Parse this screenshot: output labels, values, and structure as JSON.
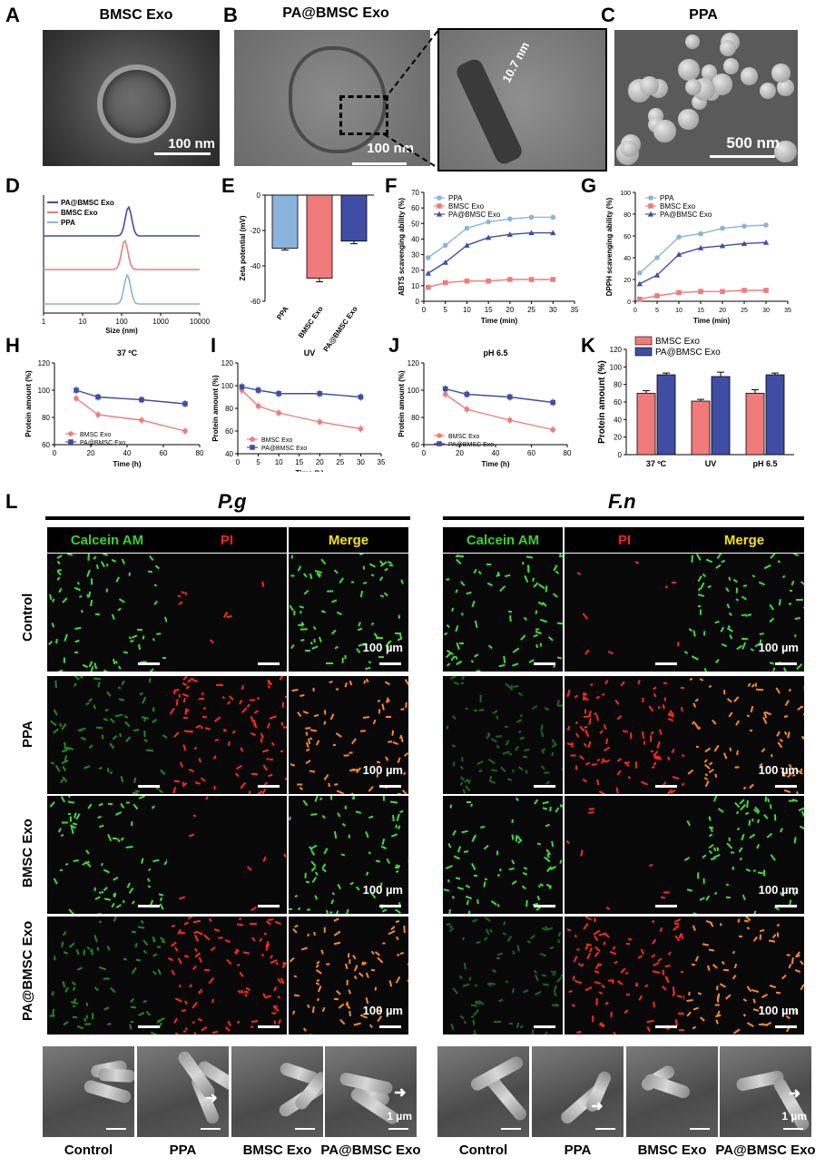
{
  "panels": {
    "A": "A",
    "B": "B",
    "C": "C",
    "D": "D",
    "E": "E",
    "F": "F",
    "G": "G",
    "H": "H",
    "I": "I",
    "J": "J",
    "K": "K",
    "L": "L"
  },
  "tem": {
    "a_title": "BMSC Exo",
    "a_scale": "100 nm",
    "b_title": "PA@BMSC Exo",
    "b_scale": "100 nm",
    "b_zoom_label": "10.7 nm",
    "c_title": "PPA",
    "c_scale": "500 nm"
  },
  "chart_data": [
    {
      "id": "D",
      "type": "line",
      "xlabel": "Size (nm)",
      "x_ticks": [
        "1",
        "10",
        "100",
        "1000",
        "10000"
      ],
      "series": [
        {
          "name": "PA@BMSC Exo",
          "color": "#3f4ea3",
          "peak_nm": 150
        },
        {
          "name": "BMSC Exo",
          "color": "#f07b7b",
          "peak_nm": 120
        },
        {
          "name": "PPA",
          "color": "#8ab4dc",
          "peak_nm": 140
        }
      ]
    },
    {
      "id": "E",
      "type": "bar",
      "ylabel": "Zeta potential (mV)",
      "ylim": [
        -60,
        0
      ],
      "y_ticks": [
        "0",
        "-20",
        "-40",
        "-60"
      ],
      "categories": [
        "PPA",
        "BMSC Exo",
        "PA@BMSC Exo"
      ],
      "values": [
        -30,
        -47,
        -26
      ],
      "errors": [
        1,
        2,
        1.5
      ],
      "colors": [
        "#8ab4dc",
        "#f07b7b",
        "#3f4ea3"
      ]
    },
    {
      "id": "F",
      "type": "line",
      "ylabel": "ABTS scavenging ability (%)",
      "xlabel": "Time (min)",
      "xlim": [
        0,
        35
      ],
      "ylim": [
        0,
        70
      ],
      "x_ticks": [
        "0",
        "5",
        "10",
        "15",
        "20",
        "25",
        "30",
        "35"
      ],
      "y_ticks": [
        "0",
        "10",
        "20",
        "30",
        "40",
        "50",
        "60",
        "70"
      ],
      "x": [
        1,
        5,
        10,
        15,
        20,
        25,
        30
      ],
      "series": [
        {
          "name": "PPA",
          "color": "#8ab4dc",
          "marker": "circle",
          "values": [
            28,
            36,
            47,
            51,
            53,
            54,
            54
          ]
        },
        {
          "name": "BMSC Exo",
          "color": "#f07b7b",
          "marker": "square",
          "values": [
            9,
            12,
            13,
            13,
            14,
            14,
            14
          ]
        },
        {
          "name": "PA@BMSC Exo",
          "color": "#3f4ea3",
          "marker": "triangle",
          "values": [
            18,
            25,
            36,
            41,
            43,
            44,
            44
          ]
        }
      ]
    },
    {
      "id": "G",
      "type": "line",
      "ylabel": "DPPH scavenging ability (%)",
      "xlabel": "Time (min)",
      "xlim": [
        0,
        35
      ],
      "ylim": [
        0,
        100
      ],
      "x_ticks": [
        "0",
        "5",
        "10",
        "15",
        "20",
        "25",
        "30",
        "35"
      ],
      "y_ticks": [
        "0",
        "20",
        "40",
        "60",
        "80",
        "100"
      ],
      "x": [
        1,
        5,
        10,
        15,
        20,
        25,
        30
      ],
      "series": [
        {
          "name": "PPA",
          "color": "#8ab4dc",
          "marker": "circle",
          "values": [
            26,
            40,
            59,
            62,
            67,
            69,
            70
          ]
        },
        {
          "name": "BMSC Exo",
          "color": "#f07b7b",
          "marker": "square",
          "values": [
            2,
            5,
            8,
            9,
            9,
            10,
            10
          ]
        },
        {
          "name": "PA@BMSC Exo",
          "color": "#3f4ea3",
          "marker": "triangle",
          "values": [
            16,
            24,
            43,
            49,
            51,
            53,
            54
          ]
        }
      ]
    },
    {
      "id": "H",
      "type": "line",
      "title": "37 ºC",
      "ylabel": "Protein amount (%)",
      "xlabel": "Time (h)",
      "xlim": [
        0,
        80
      ],
      "ylim": [
        60,
        120
      ],
      "x_ticks": [
        "0",
        "20",
        "40",
        "60",
        "80"
      ],
      "y_ticks": [
        "60",
        "80",
        "100",
        "120"
      ],
      "x": [
        12,
        24,
        48,
        72
      ],
      "series": [
        {
          "name": "BMSC Exo",
          "color": "#f07b7b",
          "marker": "circle",
          "values": [
            94,
            82,
            78,
            70
          ]
        },
        {
          "name": "PA@BMSC Exo",
          "color": "#3f4ea3",
          "marker": "square",
          "values": [
            100,
            95,
            93,
            90
          ]
        }
      ]
    },
    {
      "id": "I",
      "type": "line",
      "title": "UV",
      "ylabel": "Protein amount (%)",
      "xlabel": "Time (h)",
      "xlim": [
        0,
        35
      ],
      "ylim": [
        40,
        120
      ],
      "x_ticks": [
        "0",
        "5",
        "10",
        "15",
        "20",
        "25",
        "30",
        "35"
      ],
      "y_ticks": [
        "40",
        "60",
        "80",
        "100",
        "120"
      ],
      "x": [
        1,
        5,
        10,
        20,
        30
      ],
      "series": [
        {
          "name": "BMSC Exo",
          "color": "#f07b7b",
          "marker": "circle",
          "values": [
            96,
            82,
            76,
            68,
            62
          ]
        },
        {
          "name": "PA@BMSC Exo",
          "color": "#3f4ea3",
          "marker": "square",
          "values": [
            99,
            96,
            93,
            93,
            90
          ]
        }
      ]
    },
    {
      "id": "J",
      "type": "line",
      "title": "pH 6.5",
      "ylabel": "Protein amount (%)",
      "xlabel": "Time (h)",
      "xlim": [
        0,
        80
      ],
      "ylim": [
        60,
        120
      ],
      "x_ticks": [
        "0",
        "20",
        "40",
        "60",
        "80"
      ],
      "y_ticks": [
        "60",
        "80",
        "100",
        "120"
      ],
      "x": [
        12,
        24,
        48,
        72
      ],
      "series": [
        {
          "name": "BMSC Exo",
          "color": "#f07b7b",
          "marker": "circle",
          "values": [
            97,
            86,
            78,
            71
          ]
        },
        {
          "name": "PA@BMSC Exo",
          "color": "#3f4ea3",
          "marker": "square",
          "values": [
            101,
            97,
            95,
            91
          ]
        }
      ]
    },
    {
      "id": "K",
      "type": "bar",
      "ylabel": "Protein amount (%)",
      "ylim": [
        0,
        120
      ],
      "y_ticks": [
        "0",
        "20",
        "40",
        "60",
        "80",
        "100",
        "120"
      ],
      "categories": [
        "37 ºC",
        "UV",
        "pH 6.5"
      ],
      "series": [
        {
          "name": "BMSC Exo",
          "color": "#f07b7b",
          "values": [
            70,
            61,
            70
          ],
          "errors": [
            3,
            2,
            4
          ]
        },
        {
          "name": "PA@BMSC Exo",
          "color": "#3f4ea3",
          "values": [
            91,
            89,
            91
          ],
          "errors": [
            2,
            5,
            2
          ]
        }
      ]
    }
  ],
  "fluor": {
    "pg_title": "P.g",
    "fn_title": "F.n",
    "headers": [
      "Calcein AM",
      "PI",
      "Merge"
    ],
    "header_colors": [
      "#39d12f",
      "#ff2020",
      "#f4e500"
    ],
    "rows": [
      "Control",
      "PPA",
      "BMSC Exo",
      "PA@BMSC Exo"
    ],
    "scale": "100 µm"
  },
  "sem": {
    "labels": [
      "Control",
      "PPA",
      "BMSC Exo",
      "PA@BMSC Exo"
    ],
    "scale": "1 µm"
  }
}
